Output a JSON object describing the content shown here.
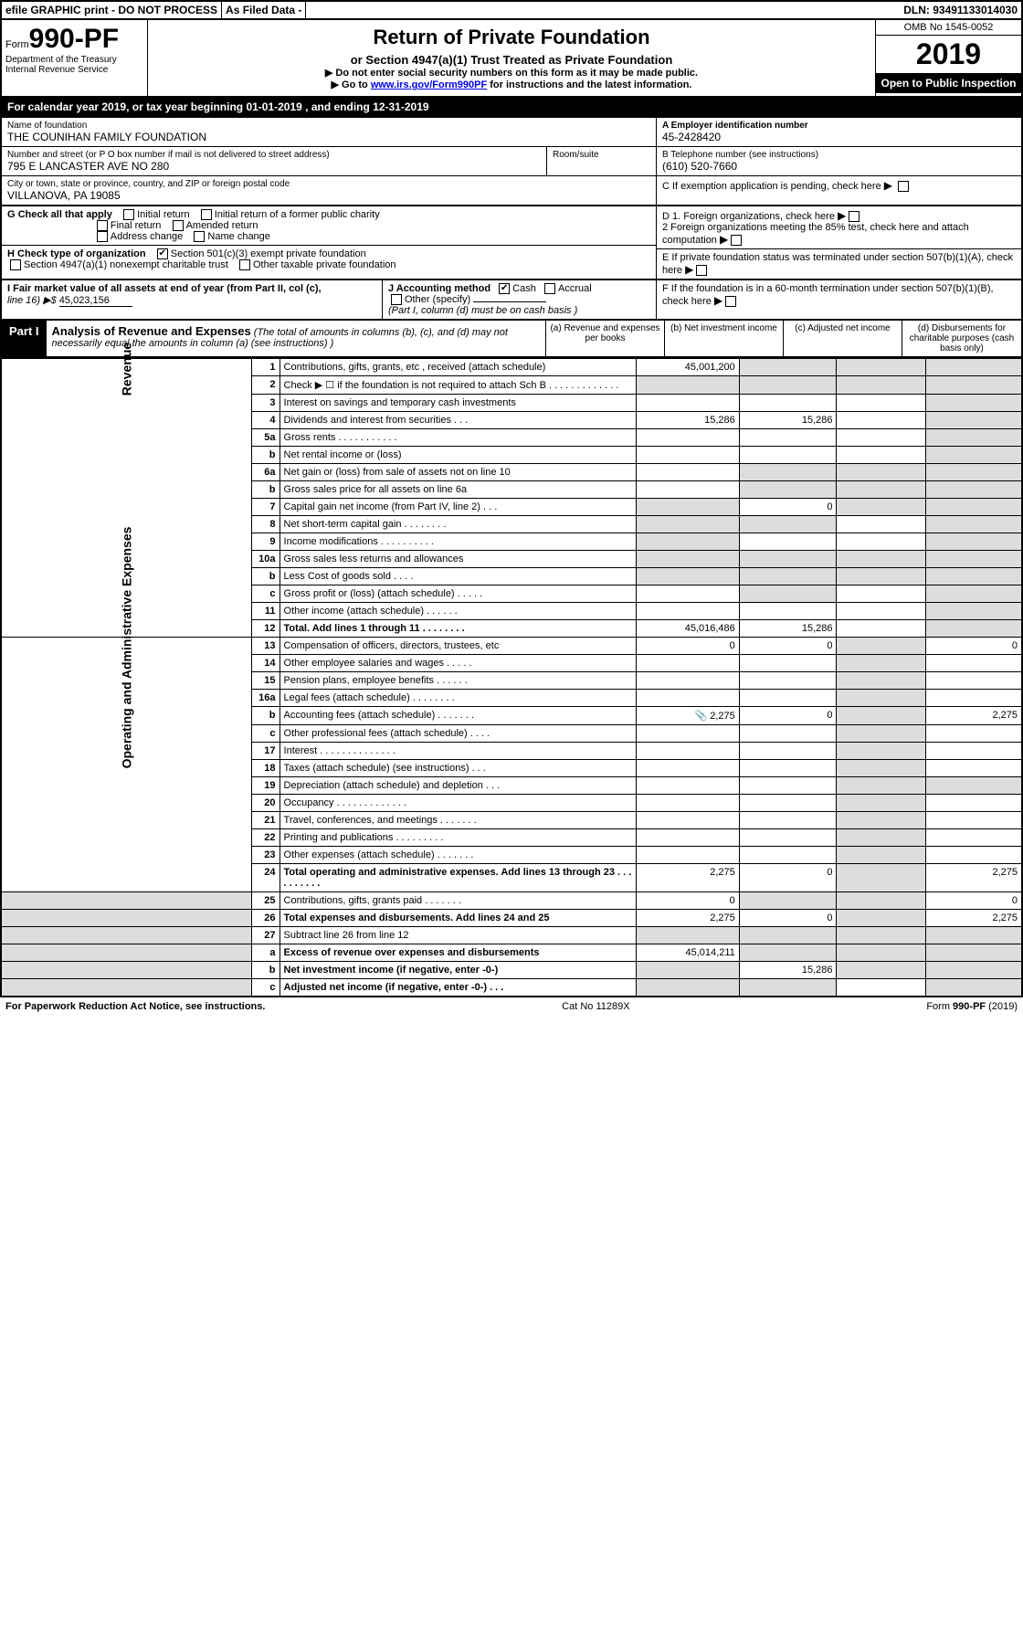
{
  "topbar": {
    "efile": "efile GRAPHIC print - DO NOT PROCESS",
    "asfiled": "As Filed Data -",
    "dln": "DLN: 93491133014030"
  },
  "header": {
    "form_pre": "Form",
    "form_num": "990-PF",
    "dept1": "Department of the Treasury",
    "dept2": "Internal Revenue Service",
    "title": "Return of Private Foundation",
    "subtitle": "or Section 4947(a)(1) Trust Treated as Private Foundation",
    "instr1": "▶ Do not enter social security numbers on this form as it may be made public.",
    "instr2": "▶ Go to ",
    "instr2_link": "www.irs.gov/Form990PF",
    "instr2_tail": " for instructions and the latest information.",
    "omb": "OMB No 1545-0052",
    "year": "2019",
    "open": "Open to Public Inspection"
  },
  "calyear": "For calendar year 2019, or tax year beginning 01-01-2019          , and ending 12-31-2019",
  "info": {
    "name_lbl": "Name of foundation",
    "name": "THE COUNIHAN FAMILY FOUNDATION",
    "addr_lbl": "Number and street (or P O  box number if mail is not delivered to street address)",
    "addr": "795 E LANCASTER AVE NO 280",
    "room_lbl": "Room/suite",
    "room": "",
    "city_lbl": "City or town, state or province, country, and ZIP or foreign postal code",
    "city": "VILLANOVA, PA  19085",
    "A_lbl": "A Employer identification number",
    "A": "45-2428420",
    "B_lbl": "B Telephone number (see instructions)",
    "B": "(610) 520-7660",
    "C_lbl": "C If exemption application is pending, check here"
  },
  "G": {
    "lbl": "G Check all that apply",
    "o1": "Initial return",
    "o2": "Initial return of a former public charity",
    "o3": "Final return",
    "o4": "Amended return",
    "o5": "Address change",
    "o6": "Name change"
  },
  "H": {
    "lbl": "H Check type of organization",
    "o1": "Section 501(c)(3) exempt private foundation",
    "o2": "Section 4947(a)(1) nonexempt charitable trust",
    "o3": "Other taxable private foundation"
  },
  "D": {
    "d1": "D 1. Foreign organizations, check here",
    "d2": "2 Foreign organizations meeting the 85% test, check here and attach computation"
  },
  "E": "E  If private foundation status was terminated under section 507(b)(1)(A), check here",
  "I": {
    "lbl": "I Fair market value of all assets at end of year (from Part II, col  (c),",
    "line": "line 16) ▶$ ",
    "amt": "45,023,156"
  },
  "J": {
    "lbl": "J Accounting method",
    "o1": "Cash",
    "o2": "Accrual",
    "o3": "Other (specify)",
    "note": "(Part I, column (d) must be on cash basis )"
  },
  "F": "F  If the foundation is in a 60-month termination under section 507(b)(1)(B), check here",
  "part1": {
    "badge": "Part I",
    "title": "Analysis of Revenue and Expenses",
    "sub": "(The total of amounts in columns (b), (c), and (d) may not necessarily equal the amounts in column (a) (see instructions) )",
    "ca": "(a)   Revenue and expenses per books",
    "cb": "(b)  Net investment income",
    "cc": "(c)  Adjusted net income",
    "cd": "(d)  Disbursements for charitable purposes (cash basis only)"
  },
  "sideR": "Revenue",
  "sideE": "Operating and Administrative Expenses",
  "rows": {
    "1": {
      "d": "Contributions, gifts, grants, etc , received (attach schedule)",
      "a": "45,001,200"
    },
    "2": {
      "d": "Check ▶ ☐ if the foundation is not required to attach Sch B   .  .  .  .  .  .  .  .  .  .  .  .  ."
    },
    "3": {
      "d": "Interest on savings and temporary cash investments"
    },
    "4": {
      "d": "Dividends and interest from securities  .  .  .",
      "a": "15,286",
      "b": "15,286"
    },
    "5a": {
      "d": "Gross rents  .  .  .  .  .  .  .  .  .  .  ."
    },
    "5b": {
      "d": "Net rental income or (loss)  "
    },
    "6a": {
      "d": "Net gain or (loss) from sale of assets not on line 10"
    },
    "6b": {
      "d": "Gross sales price for all assets on line 6a"
    },
    "7": {
      "d": "Capital gain net income (from Part IV, line 2)  .  .  .",
      "b": "0"
    },
    "8": {
      "d": "Net short-term capital gain  .  .  .  .  .  .  .  ."
    },
    "9": {
      "d": "Income modifications  .  .  .  .  .  .  .  .  .  ."
    },
    "10a": {
      "d": "Gross sales less returns and allowances"
    },
    "10b": {
      "d": "Less  Cost of goods sold  .  .  .  ."
    },
    "10c": {
      "d": "Gross profit or (loss) (attach schedule)  .  .  .  .  ."
    },
    "11": {
      "d": "Other income (attach schedule)  .  .  .  .  .  ."
    },
    "12": {
      "d": "Total. Add lines 1 through 11  .  .  .  .  .  .  .  .",
      "a": "45,016,486",
      "b": "15,286"
    },
    "13": {
      "d": "Compensation of officers, directors, trustees, etc",
      "a": "0",
      "b": "0",
      "dd": "0"
    },
    "14": {
      "d": "Other employee salaries and wages  .  .  .  .  ."
    },
    "15": {
      "d": "Pension plans, employee benefits  .  .  .  .  .  ."
    },
    "16a": {
      "d": "Legal fees (attach schedule)  .  .  .  .  .  .  .  ."
    },
    "16b": {
      "d": "Accounting fees (attach schedule)  .  .  .  .  .  .  .",
      "a": "2,275",
      "b": "0",
      "dd": "2,275"
    },
    "16c": {
      "d": "Other professional fees (attach schedule)  .  .  .  ."
    },
    "17": {
      "d": "Interest  .  .  .  .  .  .  .  .  .  .  .  .  .  ."
    },
    "18": {
      "d": "Taxes (attach schedule) (see instructions)  .  .  ."
    },
    "19": {
      "d": "Depreciation (attach schedule) and depletion  .  .  ."
    },
    "20": {
      "d": "Occupancy  .  .  .  .  .  .  .  .  .  .  .  .  ."
    },
    "21": {
      "d": "Travel, conferences, and meetings  .  .  .  .  .  .  ."
    },
    "22": {
      "d": "Printing and publications  .  .  .  .  .  .  .  .  ."
    },
    "23": {
      "d": "Other expenses (attach schedule)  .  .  .  .  .  .  ."
    },
    "24": {
      "d": "Total operating and administrative expenses. Add lines 13 through 23  .  .  .  .  .  .  .  .  .  .",
      "a": "2,275",
      "b": "0",
      "dd": "2,275"
    },
    "25": {
      "d": "Contributions, gifts, grants paid  .  .  .  .  .  .  .",
      "a": "0",
      "dd": "0"
    },
    "26": {
      "d": "Total expenses and disbursements. Add lines 24 and 25",
      "a": "2,275",
      "b": "0",
      "dd": "2,275"
    },
    "27": {
      "d": "Subtract line 26 from line 12"
    },
    "27a": {
      "d": "Excess of revenue over expenses and disbursements",
      "a": "45,014,211"
    },
    "27b": {
      "d": "Net investment income (if negative, enter -0-)",
      "b": "15,286"
    },
    "27c": {
      "d": "Adjusted net income (if negative, enter -0-)  .  .  ."
    }
  },
  "footer": {
    "left": "For Paperwork Reduction Act Notice, see instructions.",
    "mid": "Cat  No  11289X",
    "right": "Form 990-PF (2019)"
  },
  "colors": {
    "black": "#000",
    "grey": "#ddd",
    "link": "#0000ee"
  }
}
